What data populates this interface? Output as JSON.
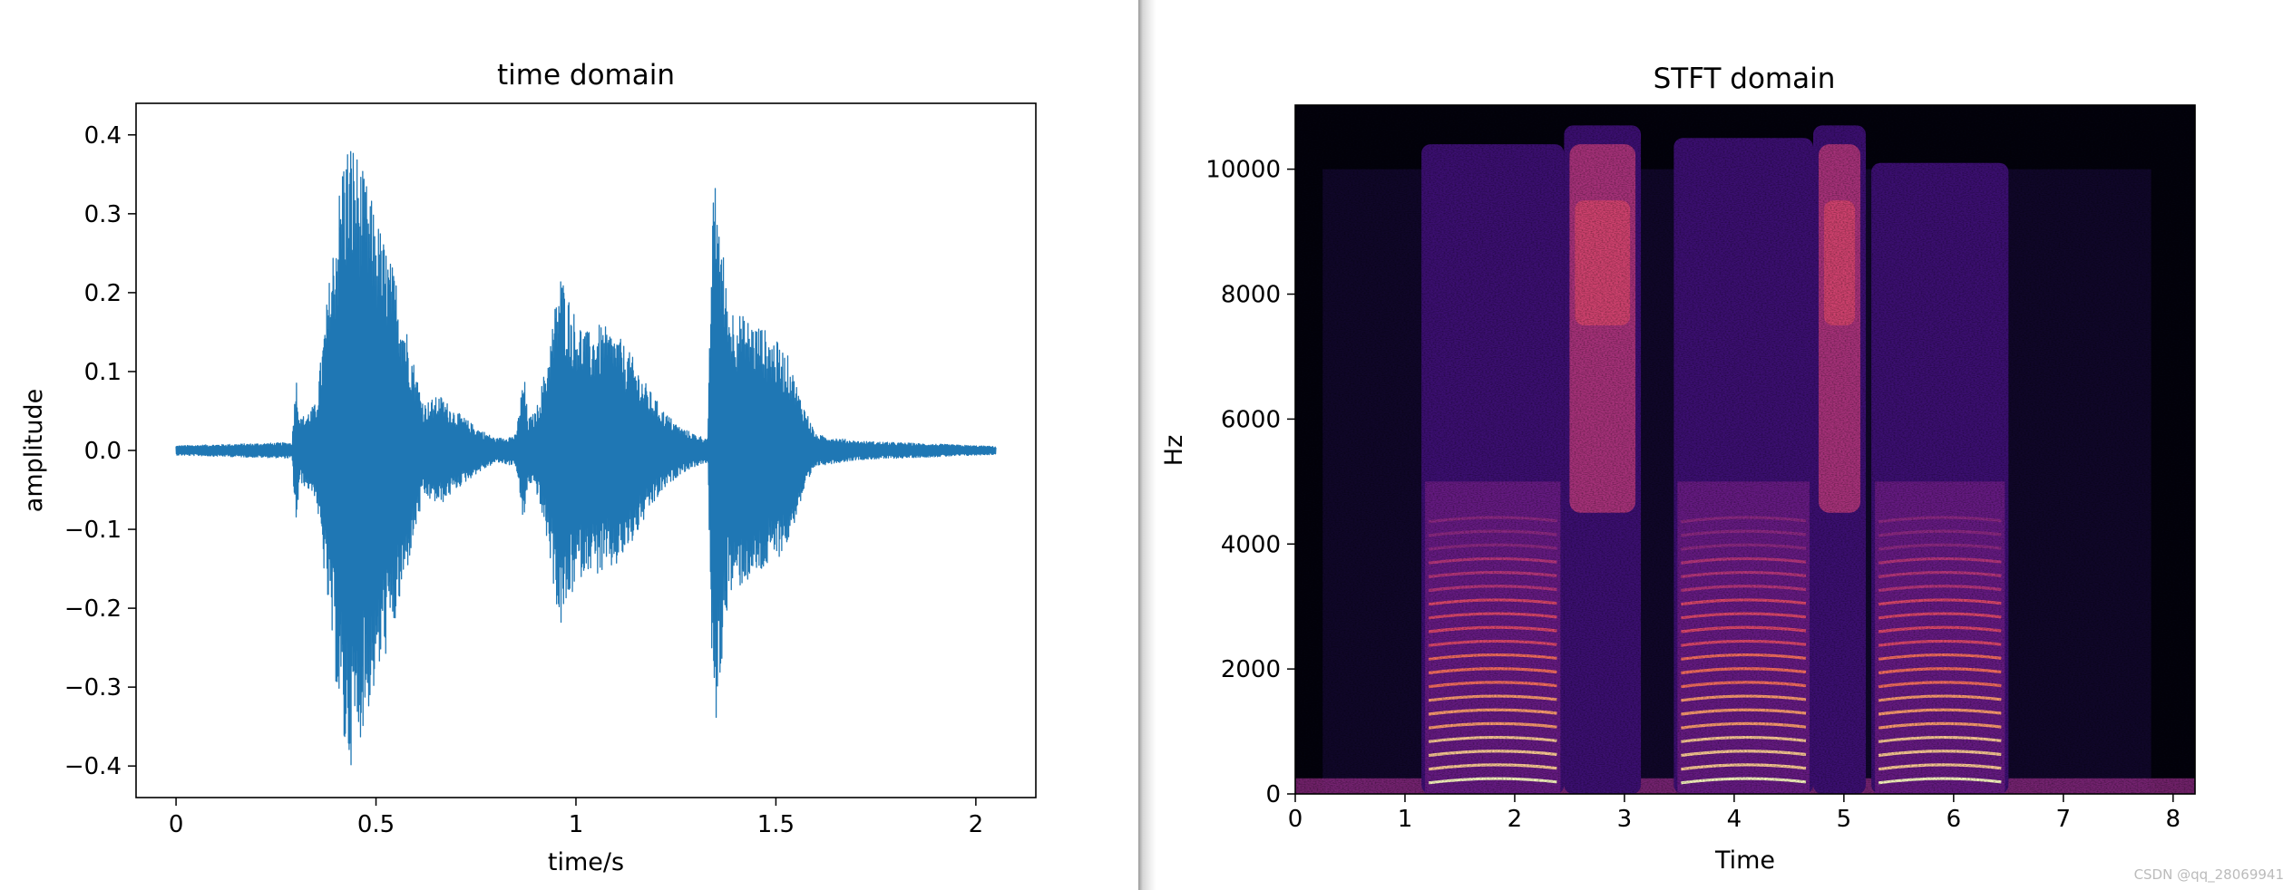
{
  "chart_data": [
    {
      "type": "line",
      "title": "time domain",
      "xlabel": "time/s",
      "ylabel": "amplitude",
      "xlim": [
        -0.1,
        2.15
      ],
      "ylim": [
        -0.44,
        0.44
      ],
      "xticks": [
        0,
        0.5,
        1,
        1.5,
        2
      ],
      "xtick_labels": [
        "0",
        "0.5",
        "1",
        "1.5",
        "2"
      ],
      "yticks": [
        0.4,
        0.3,
        0.2,
        0.1,
        0.0,
        -0.1,
        -0.2,
        -0.3,
        -0.4
      ],
      "ytick_labels": [
        "0.4",
        "0.3",
        "0.2",
        "0.1",
        "0.0",
        "−0.1",
        "−0.2",
        "−0.3",
        "−0.4"
      ],
      "grid": false,
      "color": "#1f77b4",
      "series": [
        {
          "x": [
            0.0,
            0.29,
            0.3,
            0.31,
            0.35,
            0.39,
            0.42,
            0.44,
            0.47,
            0.5,
            0.55,
            0.6,
            0.62,
            0.66,
            0.7,
            0.75,
            0.8,
            0.85,
            0.87,
            0.88,
            0.9,
            0.93,
            0.96,
            0.98,
            1.0,
            1.03,
            1.06,
            1.1,
            1.14,
            1.18,
            1.22,
            1.26,
            1.3,
            1.33,
            1.34,
            1.35,
            1.38,
            1.42,
            1.46,
            1.5,
            1.53,
            1.56,
            1.6,
            1.7,
            1.8,
            1.9,
            2.0,
            2.05
          ],
          "env": [
            0.006,
            0.01,
            0.1,
            0.04,
            0.06,
            0.25,
            0.39,
            0.4,
            0.35,
            0.3,
            0.22,
            0.1,
            0.06,
            0.07,
            0.05,
            0.03,
            0.015,
            0.02,
            0.1,
            0.04,
            0.05,
            0.12,
            0.23,
            0.2,
            0.17,
            0.15,
            0.16,
            0.15,
            0.12,
            0.08,
            0.05,
            0.03,
            0.02,
            0.015,
            0.3,
            0.35,
            0.19,
            0.17,
            0.16,
            0.14,
            0.12,
            0.07,
            0.02,
            0.012,
            0.01,
            0.008,
            0.006,
            0.005
          ]
        }
      ]
    },
    {
      "type": "heatmap",
      "title": "STFT domain",
      "xlabel": "Time",
      "ylabel": "Hz",
      "xlim": [
        0,
        8.2
      ],
      "ylim": [
        0,
        11025
      ],
      "xticks": [
        0,
        1,
        2,
        3,
        4,
        5,
        6,
        7,
        8
      ],
      "xtick_labels": [
        "0",
        "1",
        "2",
        "3",
        "4",
        "5",
        "6",
        "7",
        "8"
      ],
      "yticks": [
        0,
        2000,
        4000,
        6000,
        8000,
        10000
      ],
      "ytick_labels": [
        "0",
        "2000",
        "4000",
        "6000",
        "8000",
        "10000"
      ],
      "colormap": "magma",
      "segments": [
        {
          "t0": 1.15,
          "t1": 2.45,
          "fmax": 10400,
          "voiced": true
        },
        {
          "t0": 2.45,
          "t1": 3.15,
          "fmax": 10700,
          "voiced": false
        },
        {
          "t0": 3.45,
          "t1": 4.72,
          "fmax": 10500,
          "voiced": true
        },
        {
          "t0": 4.72,
          "t1": 5.2,
          "fmax": 10700,
          "voiced": false
        },
        {
          "t0": 5.25,
          "t1": 6.5,
          "fmax": 10100,
          "voiced": true
        }
      ]
    }
  ],
  "watermark": "CSDN @qq_28069941"
}
